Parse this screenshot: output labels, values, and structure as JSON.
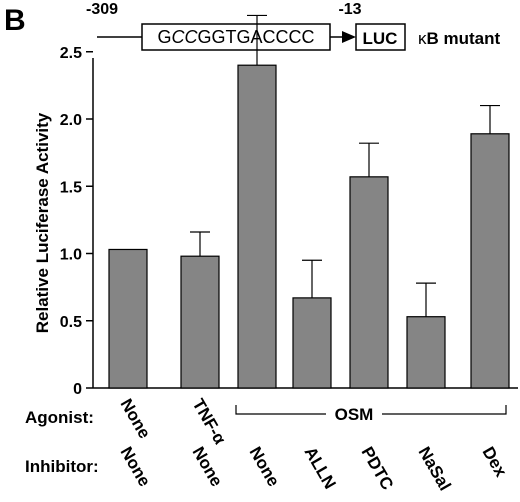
{
  "panel_label": "B",
  "construct": {
    "start_position": "-309",
    "sequence_prefix": "G",
    "sequence_mutant": "CC",
    "sequence_suffix": "GGTGACCCC",
    "end_position": "-13",
    "reporter": "LUC",
    "kappa": "κ",
    "mutant_label": "B mutant"
  },
  "row_labels": {
    "agonist": "Agonist:",
    "inhibitor": "Inhibitor:"
  },
  "agonist_labels": [
    "None",
    "TNF-α"
  ],
  "agonist_group_label": "OSM",
  "inhibitor_labels": [
    "None",
    "None",
    "None",
    "ALLN",
    "PDTC",
    "NaSal",
    "Dex"
  ],
  "colors": {
    "bar": "#858585",
    "axis": "#000000"
  },
  "chart_data": {
    "type": "bar",
    "ylabel": "Relative Luciferase Activity",
    "ylim": [
      0,
      2.75
    ],
    "yticks": [
      0,
      0.5,
      1.0,
      1.5,
      2.0,
      2.5
    ],
    "ytick_labels": [
      "0",
      "0.5",
      "1.0",
      "1.5",
      "2.0",
      "2.5"
    ],
    "categories": [
      "None / None",
      "TNF-α / None",
      "OSM / None",
      "OSM / ALLN",
      "OSM / PDTC",
      "OSM / NaSal",
      "OSM / Dex"
    ],
    "values": [
      1.03,
      0.98,
      2.4,
      0.67,
      1.57,
      0.53,
      1.89
    ],
    "errors": [
      0,
      0.18,
      0.37,
      0.28,
      0.25,
      0.25,
      0.21
    ]
  }
}
